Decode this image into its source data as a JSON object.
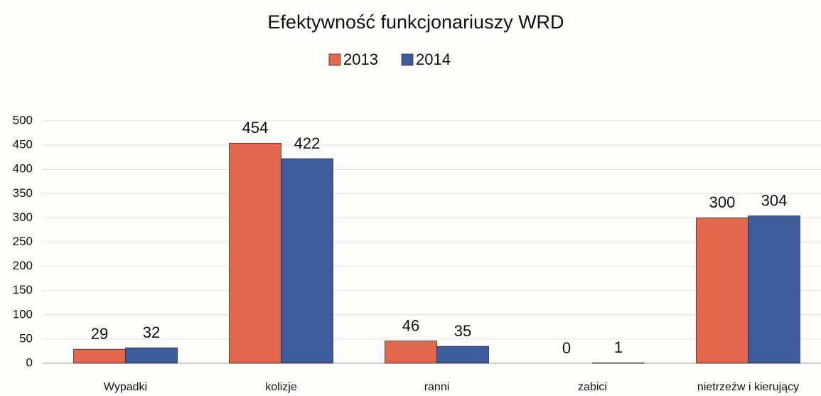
{
  "chart_data": {
    "type": "bar",
    "title": "Efektywność funkcjonariuszy WRD",
    "categories": [
      "Wypadki",
      "kolizje",
      "ranni",
      "zabici",
      "nietrzeźw i kierujący"
    ],
    "series": [
      {
        "name": "2013",
        "color": "#e2674d",
        "values": [
          29,
          454,
          46,
          0,
          300
        ]
      },
      {
        "name": "2014",
        "color": "#3c5c9c",
        "values": [
          32,
          422,
          35,
          1,
          304
        ]
      }
    ],
    "ylim": [
      0,
      500
    ],
    "yticks": [
      0,
      50,
      100,
      150,
      200,
      250,
      300,
      350,
      400,
      450,
      500
    ],
    "grid": true,
    "legend": "top"
  }
}
